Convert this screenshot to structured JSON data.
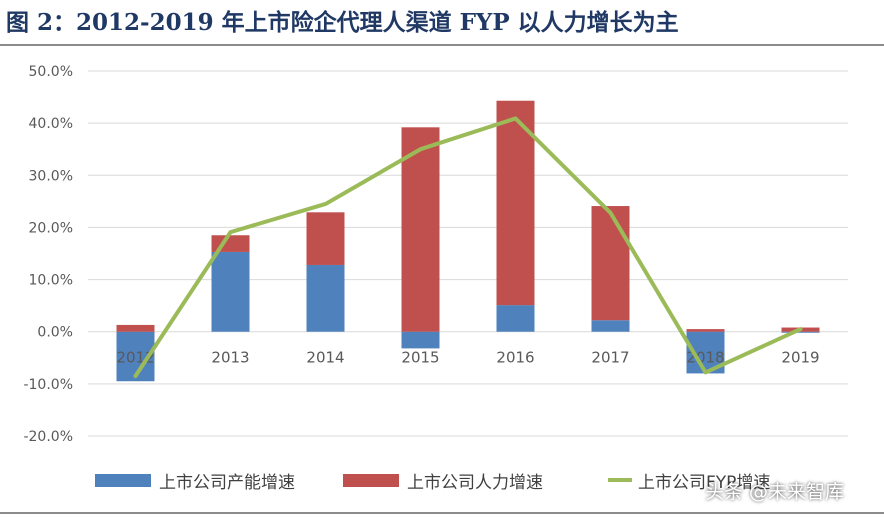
{
  "figure_title": "图 2：2012-2019 年上市险企代理人渠道 FYP 以人力增长为主",
  "watermark": "头条 @未来智库",
  "colors": {
    "title": "#1f3864",
    "productivity": "#4f81bd",
    "manpower": "#c0504d",
    "fyp_line": "#9bbb59",
    "grid": "#d9d9d9",
    "axis_text": "#595959"
  },
  "chart_data": {
    "type": "bar",
    "stacked": true,
    "categories": [
      "2012",
      "2013",
      "2014",
      "2015",
      "2016",
      "2017",
      "2018",
      "2019"
    ],
    "series": [
      {
        "name": "上市公司产能增速",
        "type": "bar",
        "color": "#4f81bd",
        "values": [
          -9.5,
          15.3,
          12.8,
          -3.2,
          5.1,
          2.2,
          -8.0,
          -0.2
        ]
      },
      {
        "name": "上市公司人力增速",
        "type": "bar",
        "color": "#c0504d",
        "values": [
          1.3,
          3.2,
          10.1,
          39.2,
          39.2,
          21.9,
          0.5,
          0.8
        ]
      },
      {
        "name": "上市公司FYP增速",
        "legend_label": "上市公司FYP增速",
        "type": "line",
        "color": "#9bbb59",
        "values": [
          -8.5,
          19.1,
          24.5,
          35.0,
          40.9,
          22.8,
          -7.8,
          0.5
        ]
      }
    ],
    "ylim": [
      -20,
      50
    ],
    "yticks": [
      -20,
      -10,
      0,
      10,
      20,
      30,
      40,
      50
    ],
    "ytick_labels": [
      "-20.0%",
      "-10.0%",
      "0.0%",
      "10.0%",
      "20.0%",
      "30.0%",
      "40.0%",
      "50.0%"
    ],
    "grid": true,
    "legend_position": "bottom",
    "xlabel": "",
    "ylabel": ""
  }
}
